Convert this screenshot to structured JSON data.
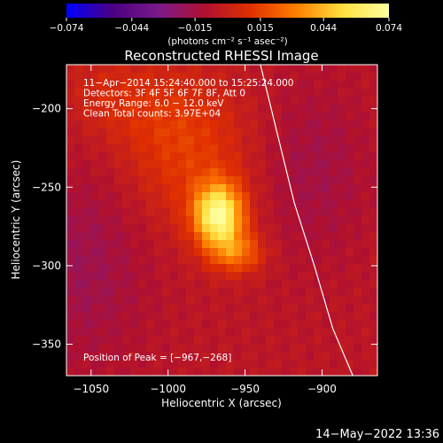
{
  "chart_data": {
    "type": "heatmap",
    "title": "Reconstructed RHESSI Image",
    "xlabel": "Heliocentric X (arcsec)",
    "ylabel": "Heliocentric Y (arcsec)",
    "xlim": [
      -1066,
      -864
    ],
    "ylim": [
      -370,
      -172
    ],
    "xticks": [
      -1050,
      -1000,
      -950,
      -900
    ],
    "xtick_labels": [
      "−1050",
      "−1000",
      "−950",
      "−900"
    ],
    "yticks": [
      -200,
      -250,
      -300,
      -350
    ],
    "ytick_labels": [
      "−200",
      "−250",
      "−300",
      "−350"
    ],
    "annotations": [
      "11−Apr−2014 15:24:40.000 to 15:25:24.000",
      "Detectors: 3F 4F 5F 6F 7F 8F, Att 0",
      "Energy Range: 6.0 − 12.0 keV",
      "Clean     Total counts: 3.97E+04"
    ],
    "peak_label": "Position of Peak = [−967,−268]",
    "peak": [
      -967,
      -268
    ],
    "colorbar": {
      "range": [
        -0.074,
        0.074
      ],
      "ticks": [
        -0.074,
        -0.044,
        -0.015,
        0.015,
        0.044,
        0.074
      ],
      "tick_labels": [
        "−0.074",
        "−0.044",
        "−0.015",
        "0.015",
        "0.044",
        "0.074"
      ],
      "unit": "(photons cm⁻² s⁻¹ asec⁻²)",
      "colors": [
        "#0000ff",
        "#4b0082",
        "#7a1a8a",
        "#b01030",
        "#e03000",
        "#ff8000",
        "#ffe040",
        "#ffffa0"
      ]
    },
    "limb": [
      [
        -940,
        -172
      ],
      [
        -928,
        -220
      ],
      [
        -918,
        -260
      ],
      [
        -905,
        -300
      ],
      [
        -893,
        -340
      ],
      [
        -880,
        -370
      ]
    ],
    "sources": [
      {
        "x": -967,
        "y": -268,
        "amp": 0.074,
        "sx": 11,
        "sy": 14
      },
      {
        "x": -955,
        "y": -292,
        "amp": 0.03,
        "sx": 12,
        "sy": 9
      },
      {
        "x": -985,
        "y": -240,
        "amp": 0.014,
        "sx": 28,
        "sy": 30
      },
      {
        "x": -1000,
        "y": -205,
        "amp": 0.012,
        "sx": 30,
        "sy": 25
      },
      {
        "x": -1040,
        "y": -190,
        "amp": 0.008,
        "sx": 22,
        "sy": 18
      },
      {
        "x": -1055,
        "y": -300,
        "amp": -0.012,
        "sx": 30,
        "sy": 45
      },
      {
        "x": -905,
        "y": -240,
        "amp": -0.01,
        "sx": 25,
        "sy": 40
      }
    ]
  },
  "timestamp": "14−May−2022 13:36"
}
